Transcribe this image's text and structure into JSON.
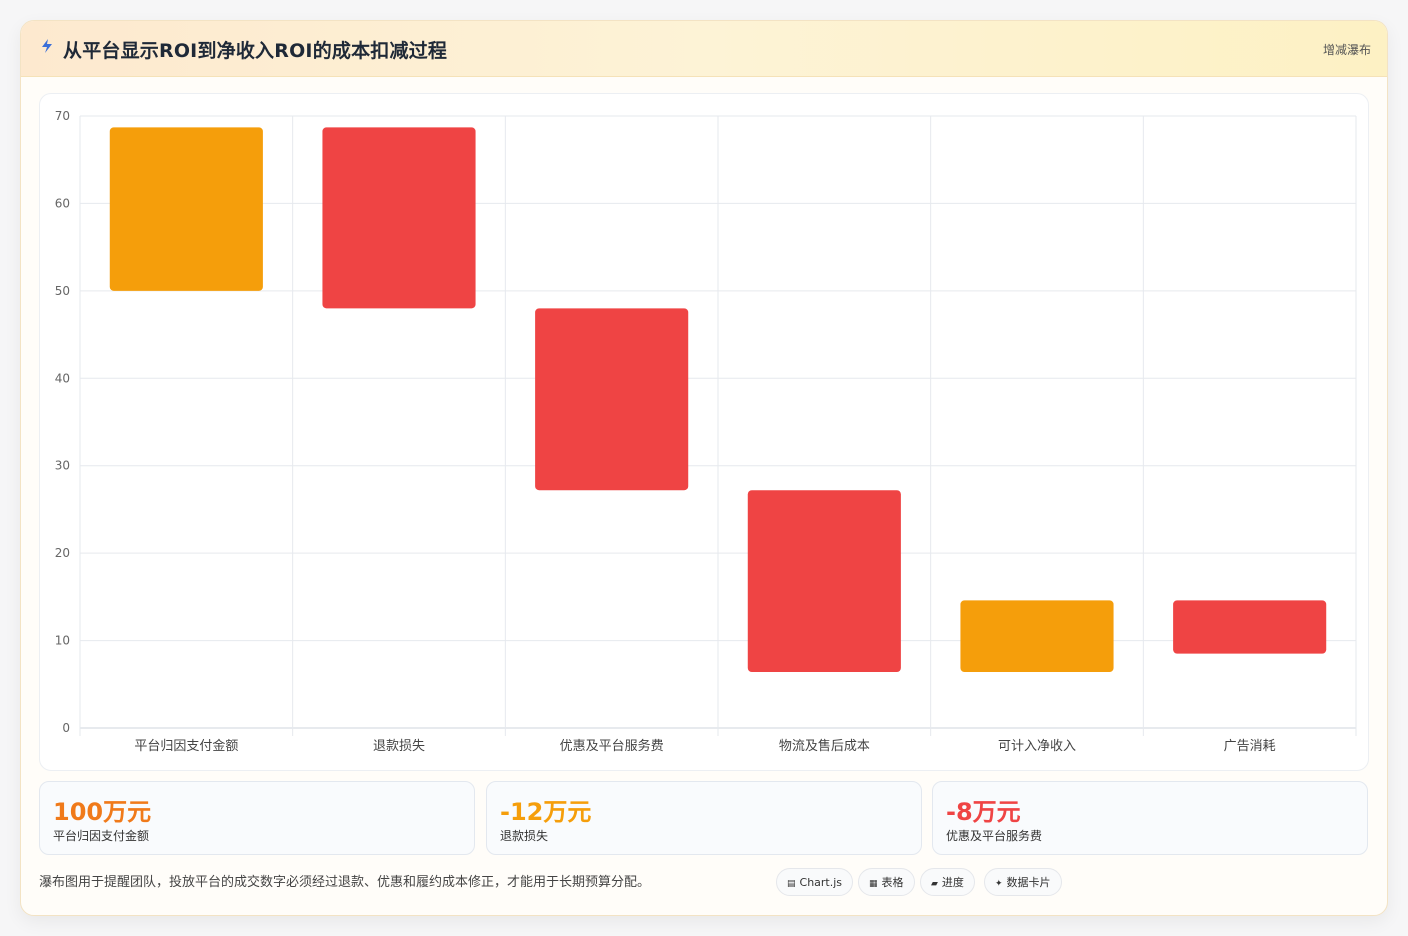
{
  "header": {
    "title": "从平台显示ROI到净收入ROI的成本扣减过程",
    "tag": "增减瀑布",
    "icon": "lightning-icon"
  },
  "colors": {
    "increase": "#f59e0b",
    "decrease": "#ef4444"
  },
  "chart_data": {
    "type": "bar",
    "title": "",
    "xlabel": "",
    "ylabel": "",
    "ylim": [
      0,
      70
    ],
    "yticks": [
      0,
      10,
      20,
      30,
      40,
      50,
      60,
      70
    ],
    "grid": true,
    "categories": [
      "平台归因支付金额",
      "退款损失",
      "优惠及平台服务费",
      "物流及售后成本",
      "可计入净收入",
      "广告消耗"
    ],
    "bars": [
      {
        "low": 50,
        "high": 68.7,
        "kind": "increase"
      },
      {
        "low": 48,
        "high": 68.7,
        "kind": "decrease"
      },
      {
        "low": 27.2,
        "high": 48,
        "kind": "decrease"
      },
      {
        "low": 6.4,
        "high": 27.2,
        "kind": "decrease"
      },
      {
        "low": 6.4,
        "high": 14.6,
        "kind": "increase"
      },
      {
        "low": 8.5,
        "high": 14.6,
        "kind": "decrease"
      }
    ]
  },
  "metrics": [
    {
      "value": "100万元",
      "label": "平台归因支付金额",
      "color": "#f07a1a"
    },
    {
      "value": "-12万元",
      "label": "退款损失",
      "color": "#f59e0b"
    },
    {
      "value": "-8万元",
      "label": "优惠及平台服务费",
      "color": "#ef4444"
    }
  ],
  "footnote": "瀑布图用于提醒团队，投放平台的成交数字必须经过退款、优惠和履约成本修正，才能用于长期预算分配。",
  "pills": [
    {
      "icon": "▤",
      "label": "Chart.js"
    },
    {
      "icon": "▦",
      "label": "表格"
    },
    {
      "icon": "▰",
      "label": "进度"
    },
    {
      "icon": "✦",
      "label": "数据卡片"
    }
  ]
}
